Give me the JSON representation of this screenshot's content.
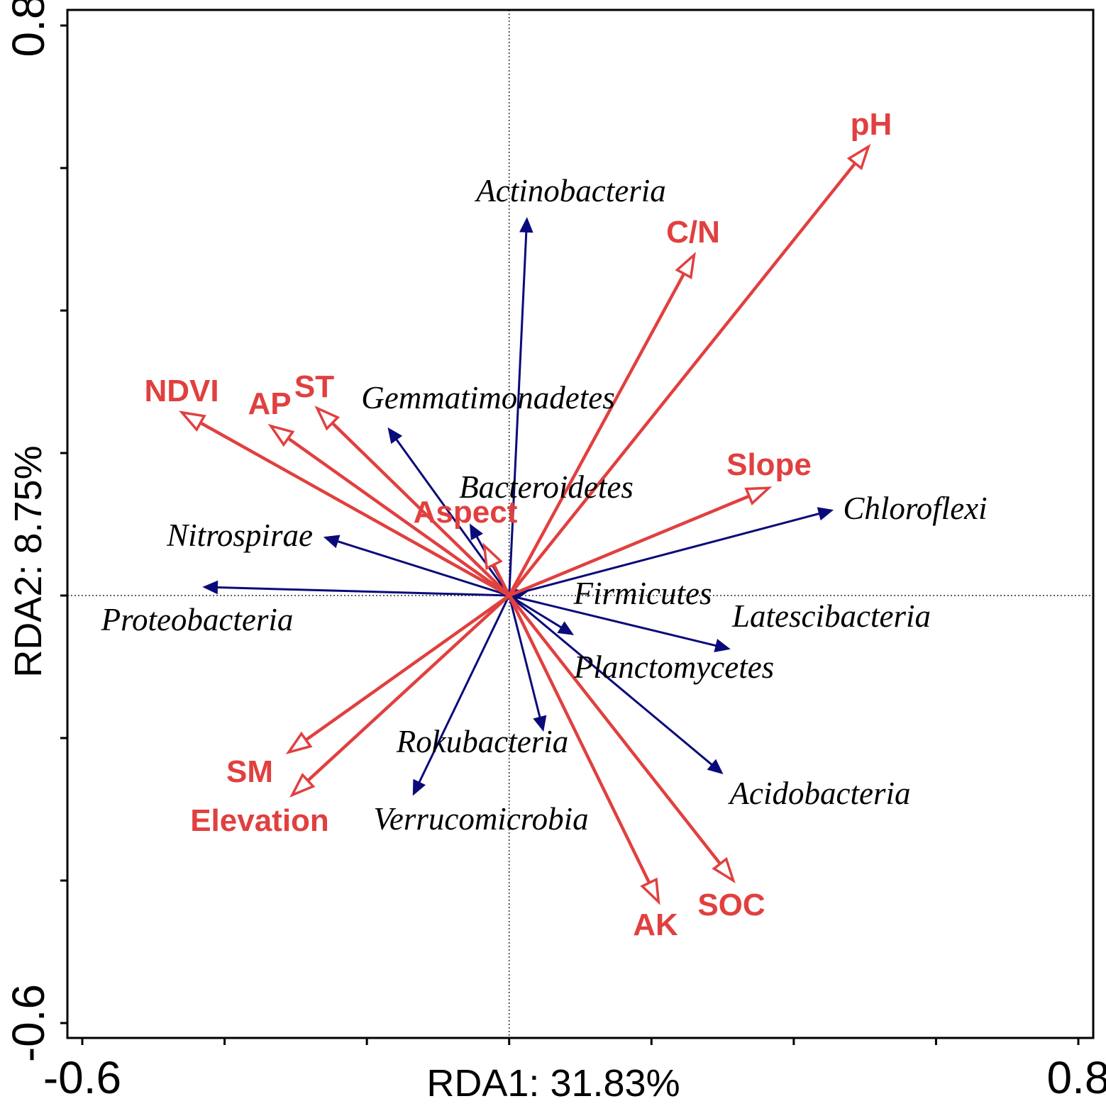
{
  "chart_data": {
    "type": "biplot",
    "method": "RDA",
    "xlabel": "RDA1: 31.83%",
    "ylabel": "RDA2: 8.75%",
    "xlim": [
      -0.6,
      0.8
    ],
    "ylim": [
      -0.6,
      0.8
    ],
    "x_tick_labels": [
      {
        "value": -0.6,
        "label": "-0.6"
      },
      {
        "value": 0.8,
        "label": "0.8"
      }
    ],
    "y_tick_labels": [
      {
        "value": 0.8,
        "label": "0.8"
      },
      {
        "value": -0.6,
        "label": "-0.6"
      }
    ],
    "x_minor_ticks": [
      -0.6,
      -0.4,
      -0.2,
      0.0,
      0.2,
      0.4,
      0.6,
      0.8
    ],
    "y_minor_ticks": [
      0.8,
      0.6,
      0.4,
      0.2,
      0.0,
      -0.2,
      -0.4,
      -0.6
    ],
    "reference_lines": {
      "x": 0.0,
      "y": 0.0
    },
    "colors": {
      "species": "#0A0A7A",
      "environment": "#E0403F",
      "axis": "#000000"
    },
    "species_series": [
      {
        "name": "Actinobacteria",
        "x": 0.025,
        "y": 0.53
      },
      {
        "name": "Gemmatimonadetes",
        "x": -0.17,
        "y": 0.235
      },
      {
        "name": "Bacteroidetes",
        "x": -0.055,
        "y": 0.1
      },
      {
        "name": "Nitrospirae",
        "x": -0.26,
        "y": 0.082
      },
      {
        "name": "Proteobacteria",
        "x": -0.43,
        "y": 0.012
      },
      {
        "name": "Chloroflexi",
        "x": 0.455,
        "y": 0.12
      },
      {
        "name": "Firmicutes",
        "x": 0.025,
        "y": 0.005
      },
      {
        "name": "Latescibacteria",
        "x": 0.31,
        "y": -0.075
      },
      {
        "name": "Planctomycetes",
        "x": 0.09,
        "y": -0.055
      },
      {
        "name": "Rokubacteria",
        "x": 0.048,
        "y": -0.19
      },
      {
        "name": "Acidobacteria",
        "x": 0.3,
        "y": -0.25
      },
      {
        "name": "Verrucomicrobia",
        "x": -0.135,
        "y": -0.28
      }
    ],
    "environment_series": [
      {
        "name": "pH",
        "x": 0.505,
        "y": 0.63
      },
      {
        "name": "C/N",
        "x": 0.26,
        "y": 0.478
      },
      {
        "name": "NDVI",
        "x": -0.46,
        "y": 0.257
      },
      {
        "name": "AP",
        "x": -0.335,
        "y": 0.238
      },
      {
        "name": "ST",
        "x": -0.27,
        "y": 0.263
      },
      {
        "name": "Slope",
        "x": 0.365,
        "y": 0.151
      },
      {
        "name": "Aspect",
        "x": -0.035,
        "y": 0.07
      },
      {
        "name": "SM",
        "x": -0.31,
        "y": -0.22
      },
      {
        "name": "Elevation",
        "x": -0.305,
        "y": -0.28
      },
      {
        "name": "AK",
        "x": 0.21,
        "y": -0.43
      },
      {
        "name": "SOC",
        "x": 0.315,
        "y": -0.4
      }
    ]
  }
}
